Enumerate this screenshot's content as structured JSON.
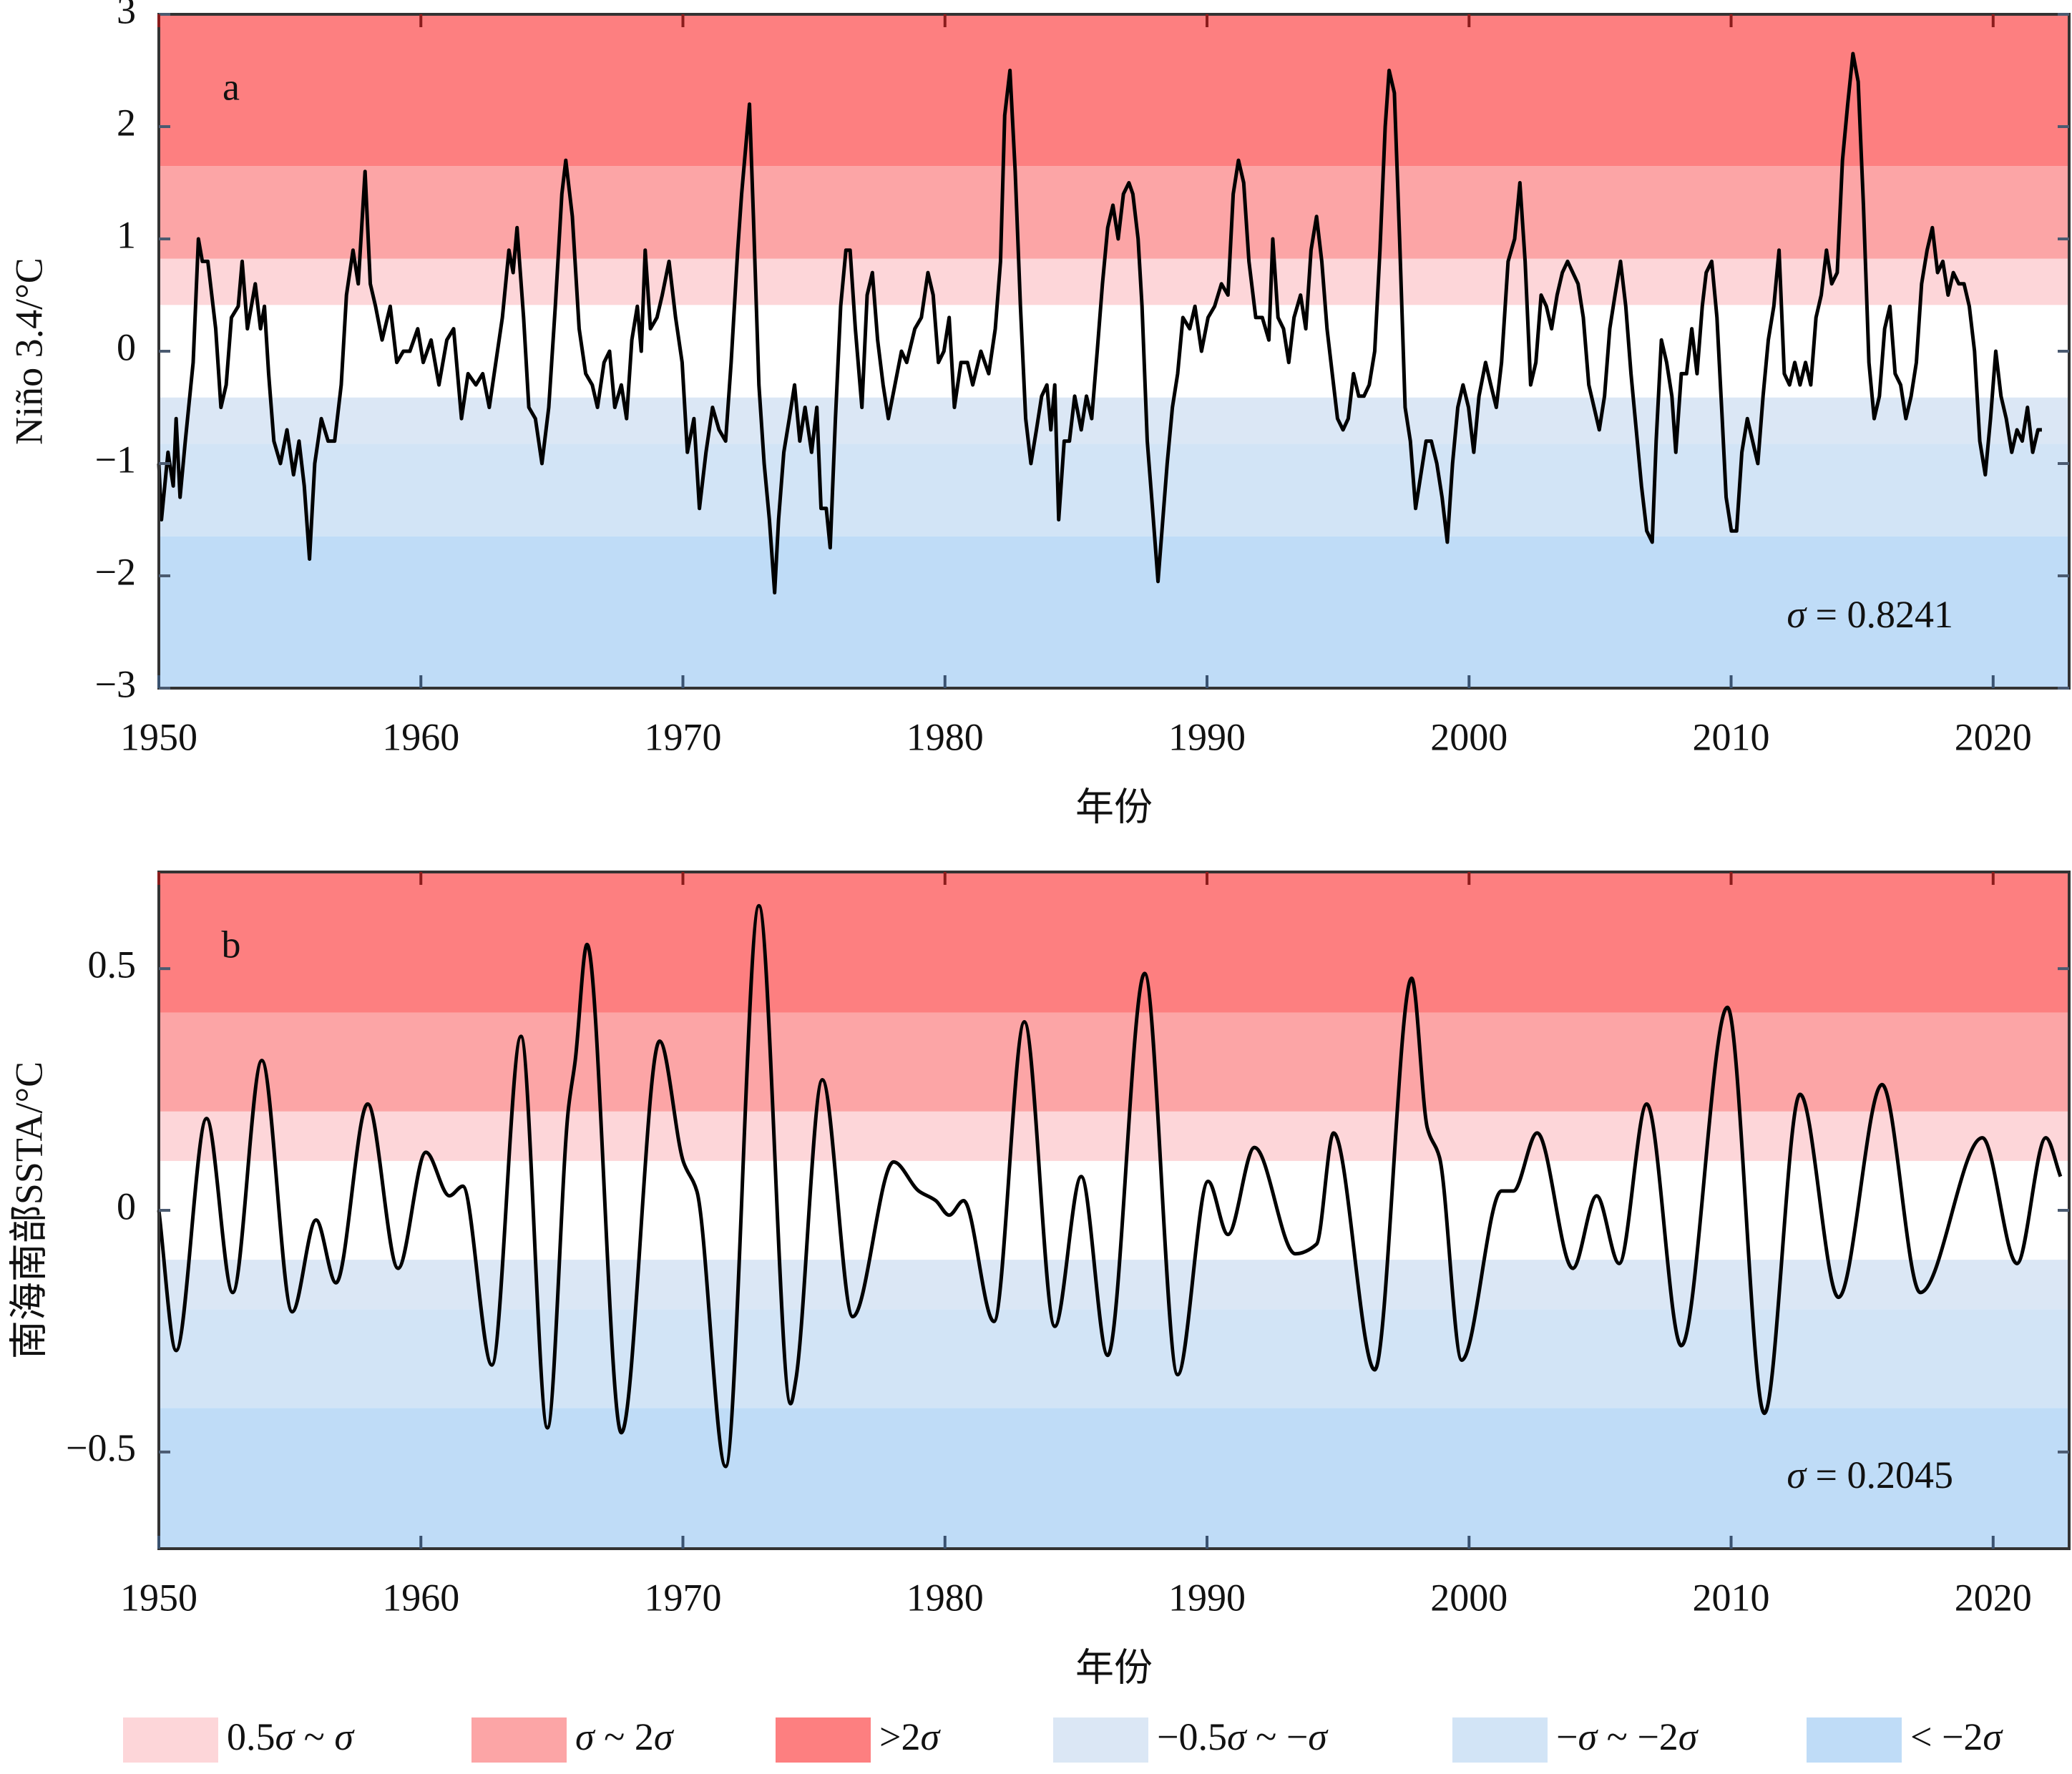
{
  "chart_data": [
    {
      "type": "line",
      "panel_label": "a",
      "sigma": 0.8241,
      "sigma_label": "σ = 0.8241",
      "x_label": "年份",
      "y_label": "Niño 3.4/°C",
      "xlim": [
        1950,
        2022.9
      ],
      "xticks": [
        1950,
        1960,
        1970,
        1980,
        1990,
        2000,
        2010,
        2020
      ],
      "ylim": [
        -3,
        3
      ],
      "yticks": [
        {
          "value": -3,
          "label": "−3"
        },
        {
          "value": -2,
          "label": "−2"
        },
        {
          "value": -1,
          "label": "−1"
        },
        0,
        1,
        2,
        3
      ],
      "series": [
        {
          "color": "#000000",
          "smooth": false,
          "x": [
            1950.0,
            1950.1,
            1950.35,
            1950.55,
            1950.66,
            1950.81,
            1951.01,
            1951.31,
            1951.51,
            1951.66,
            1951.87,
            1952.17,
            1952.37,
            1952.57,
            1952.77,
            1953.03,
            1953.18,
            1953.38,
            1953.68,
            1953.88,
            1954.03,
            1954.19,
            1954.39,
            1954.64,
            1954.89,
            1955.14,
            1955.35,
            1955.55,
            1955.75,
            1955.95,
            1956.2,
            1956.46,
            1956.71,
            1956.96,
            1957.16,
            1957.41,
            1957.61,
            1957.87,
            1958.07,
            1958.27,
            1958.52,
            1958.83,
            1959.08,
            1959.33,
            1959.58,
            1959.88,
            1960.09,
            1960.39,
            1960.69,
            1960.99,
            1961.25,
            1961.55,
            1961.8,
            1962.1,
            1962.36,
            1962.61,
            1962.86,
            1963.11,
            1963.36,
            1963.52,
            1963.67,
            1963.92,
            1964.12,
            1964.37,
            1964.62,
            1964.88,
            1965.13,
            1965.38,
            1965.53,
            1965.78,
            1966.04,
            1966.29,
            1966.54,
            1966.74,
            1966.99,
            1967.2,
            1967.4,
            1967.65,
            1967.85,
            1968.05,
            1968.26,
            1968.41,
            1968.56,
            1968.76,
            1969.01,
            1969.21,
            1969.47,
            1969.72,
            1969.97,
            1970.17,
            1970.42,
            1970.63,
            1970.88,
            1971.13,
            1971.38,
            1971.63,
            1971.84,
            1972.09,
            1972.24,
            1972.39,
            1972.54,
            1972.69,
            1972.9,
            1973.1,
            1973.3,
            1973.5,
            1973.65,
            1973.85,
            1974.06,
            1974.26,
            1974.46,
            1974.66,
            1974.91,
            1975.11,
            1975.27,
            1975.47,
            1975.62,
            1975.82,
            1976.02,
            1976.22,
            1976.38,
            1976.58,
            1976.83,
            1977.03,
            1977.23,
            1977.43,
            1977.64,
            1977.84,
            1978.09,
            1978.34,
            1978.54,
            1978.85,
            1979.1,
            1979.35,
            1979.55,
            1979.75,
            1979.96,
            1980.16,
            1980.36,
            1980.61,
            1980.86,
            1981.06,
            1981.37,
            1981.67,
            1981.92,
            1982.12,
            1982.28,
            1982.48,
            1982.68,
            1982.88,
            1983.08,
            1983.28,
            1983.49,
            1983.69,
            1983.89,
            1984.04,
            1984.19,
            1984.34,
            1984.55,
            1984.75,
            1984.95,
            1985.2,
            1985.4,
            1985.6,
            1985.81,
            1986.01,
            1986.21,
            1986.41,
            1986.61,
            1986.81,
            1987.02,
            1987.17,
            1987.37,
            1987.52,
            1987.72,
            1987.92,
            1988.13,
            1988.28,
            1988.48,
            1988.68,
            1988.88,
            1989.08,
            1989.34,
            1989.54,
            1989.79,
            1990.04,
            1990.29,
            1990.55,
            1990.8,
            1991.0,
            1991.2,
            1991.4,
            1991.6,
            1991.86,
            1992.11,
            1992.36,
            1992.51,
            1992.71,
            1992.92,
            1993.12,
            1993.32,
            1993.57,
            1993.77,
            1993.97,
            1994.18,
            1994.38,
            1994.58,
            1994.78,
            1994.98,
            1995.19,
            1995.39,
            1995.59,
            1995.79,
            1995.99,
            1996.19,
            1996.4,
            1996.6,
            1996.8,
            1996.95,
            1997.15,
            1997.35,
            1997.56,
            1997.76,
            1997.96,
            1998.16,
            1998.36,
            1998.56,
            1998.77,
            1998.97,
            1999.17,
            1999.37,
            1999.57,
            1999.77,
            1999.98,
            2000.18,
            2000.38,
            2000.63,
            2000.83,
            2001.04,
            2001.24,
            2001.49,
            2001.74,
            2001.94,
            2002.14,
            2002.35,
            2002.55,
            2002.75,
            2002.95,
            2003.15,
            2003.36,
            2003.56,
            2003.76,
            2003.96,
            2004.16,
            2004.36,
            2004.57,
            2004.77,
            2004.97,
            2005.17,
            2005.37,
            2005.57,
            2005.78,
            2005.98,
            2006.18,
            2006.38,
            2006.58,
            2006.78,
            2006.99,
            2007.14,
            2007.34,
            2007.54,
            2007.74,
            2007.89,
            2008.1,
            2008.3,
            2008.5,
            2008.7,
            2008.9,
            2009.05,
            2009.26,
            2009.46,
            2009.66,
            2009.81,
            2010.01,
            2010.21,
            2010.41,
            2010.62,
            2010.82,
            2011.02,
            2011.22,
            2011.42,
            2011.63,
            2011.83,
            2012.03,
            2012.23,
            2012.43,
            2012.63,
            2012.84,
            2013.04,
            2013.24,
            2013.44,
            2013.64,
            2013.84,
            2014.05,
            2014.25,
            2014.45,
            2014.65,
            2014.85,
            2015.05,
            2015.26,
            2015.46,
            2015.66,
            2015.86,
            2016.06,
            2016.26,
            2016.47,
            2016.67,
            2016.87,
            2017.07,
            2017.27,
            2017.48,
            2017.68,
            2017.88,
            2018.08,
            2018.28,
            2018.48,
            2018.69,
            2018.89,
            2019.09,
            2019.29,
            2019.49,
            2019.7,
            2019.9,
            2020.1,
            2020.3,
            2020.5,
            2020.71,
            2020.91,
            2021.11,
            2021.31,
            2021.51,
            2021.71,
            2021.86
          ],
          "values": [
            -1.0,
            -1.5,
            -0.9,
            -1.2,
            -0.6,
            -1.3,
            -0.8,
            -0.1,
            1.0,
            0.8,
            0.8,
            0.2,
            -0.5,
            -0.3,
            0.3,
            0.4,
            0.8,
            0.2,
            0.6,
            0.2,
            0.4,
            -0.2,
            -0.8,
            -1.0,
            -0.7,
            -1.1,
            -0.8,
            -1.2,
            -1.85,
            -1.0,
            -0.6,
            -0.8,
            -0.8,
            -0.3,
            0.5,
            0.9,
            0.6,
            1.6,
            0.6,
            0.4,
            0.1,
            0.4,
            -0.1,
            0.0,
            0.0,
            0.2,
            -0.1,
            0.1,
            -0.3,
            0.1,
            0.2,
            -0.6,
            -0.2,
            -0.3,
            -0.2,
            -0.5,
            -0.1,
            0.3,
            0.9,
            0.7,
            1.1,
            0.3,
            -0.5,
            -0.6,
            -1.0,
            -0.5,
            0.4,
            1.4,
            1.7,
            1.2,
            0.2,
            -0.2,
            -0.3,
            -0.5,
            -0.1,
            0.0,
            -0.5,
            -0.3,
            -0.6,
            0.1,
            0.4,
            0.0,
            0.9,
            0.2,
            0.3,
            0.5,
            0.8,
            0.3,
            -0.1,
            -0.9,
            -0.6,
            -1.4,
            -0.9,
            -0.5,
            -0.7,
            -0.8,
            -0.1,
            0.9,
            1.4,
            1.8,
            2.2,
            1.2,
            -0.3,
            -1.0,
            -1.5,
            -2.15,
            -1.5,
            -0.9,
            -0.6,
            -0.3,
            -0.8,
            -0.5,
            -0.9,
            -0.5,
            -1.4,
            -1.4,
            -1.75,
            -0.6,
            0.4,
            0.9,
            0.9,
            0.2,
            -0.5,
            0.5,
            0.7,
            0.1,
            -0.3,
            -0.6,
            -0.3,
            0.0,
            -0.1,
            0.2,
            0.3,
            0.7,
            0.5,
            -0.1,
            0.0,
            0.3,
            -0.5,
            -0.1,
            -0.1,
            -0.3,
            0.0,
            -0.2,
            0.2,
            0.8,
            2.1,
            2.5,
            1.6,
            0.4,
            -0.6,
            -1.0,
            -0.7,
            -0.4,
            -0.3,
            -0.7,
            -0.3,
            -1.5,
            -0.8,
            -0.8,
            -0.4,
            -0.7,
            -0.4,
            -0.6,
            0.0,
            0.6,
            1.1,
            1.3,
            1.0,
            1.4,
            1.5,
            1.4,
            1.0,
            0.4,
            -0.8,
            -1.4,
            -2.05,
            -1.6,
            -1.0,
            -0.5,
            -0.2,
            0.3,
            0.2,
            0.4,
            0.0,
            0.3,
            0.4,
            0.6,
            0.5,
            1.4,
            1.7,
            1.5,
            0.8,
            0.3,
            0.3,
            0.1,
            1.0,
            0.3,
            0.2,
            -0.1,
            0.3,
            0.5,
            0.2,
            0.9,
            1.2,
            0.8,
            0.2,
            -0.2,
            -0.6,
            -0.7,
            -0.6,
            -0.2,
            -0.4,
            -0.4,
            -0.3,
            0.0,
            0.9,
            2.0,
            2.5,
            2.3,
            1.0,
            -0.5,
            -0.8,
            -1.4,
            -1.1,
            -0.8,
            -0.8,
            -1.0,
            -1.3,
            -1.7,
            -1.0,
            -0.5,
            -0.3,
            -0.5,
            -0.9,
            -0.4,
            -0.1,
            -0.3,
            -0.5,
            -0.1,
            0.8,
            1.0,
            1.5,
            0.8,
            -0.3,
            -0.1,
            0.5,
            0.4,
            0.2,
            0.5,
            0.7,
            0.8,
            0.7,
            0.6,
            0.3,
            -0.3,
            -0.5,
            -0.7,
            -0.4,
            0.2,
            0.5,
            0.8,
            0.4,
            -0.2,
            -0.7,
            -1.2,
            -1.6,
            -1.7,
            -0.8,
            0.1,
            -0.1,
            -0.4,
            -0.9,
            -0.2,
            -0.2,
            0.2,
            -0.2,
            0.4,
            0.7,
            0.8,
            0.3,
            -0.6,
            -1.3,
            -1.6,
            -1.6,
            -0.9,
            -0.6,
            -0.8,
            -1.0,
            -0.4,
            0.1,
            0.4,
            0.9,
            -0.2,
            -0.3,
            -0.1,
            -0.3,
            -0.1,
            -0.3,
            0.3,
            0.5,
            0.9,
            0.6,
            0.7,
            1.7,
            2.2,
            2.65,
            2.4,
            1.3,
            -0.1,
            -0.6,
            -0.4,
            0.2,
            0.4,
            -0.2,
            -0.3,
            -0.6,
            -0.4,
            -0.1,
            0.6,
            0.9,
            1.1,
            0.7,
            0.8,
            0.5,
            0.7,
            0.6,
            0.6,
            0.4,
            0.0,
            -0.8,
            -1.1,
            -0.6,
            0.0,
            -0.4,
            -0.6,
            -0.9,
            -0.7,
            -0.8,
            -0.5,
            -0.9,
            -0.7,
            -0.7
          ]
        }
      ]
    },
    {
      "type": "line",
      "panel_label": "b",
      "sigma": 0.2045,
      "sigma_label": "σ = 0.2045",
      "x_label": "年份",
      "y_label": "南海南部SSTA/°C",
      "xlim": [
        1950,
        2022.9
      ],
      "xticks": [
        1950,
        1960,
        1970,
        1980,
        1990,
        2000,
        2010,
        2020
      ],
      "ylim": [
        -0.7,
        0.7
      ],
      "yticks": [
        {
          "value": -0.5,
          "label": "−0.5"
        },
        0,
        0.5
      ],
      "series": [
        {
          "color": "#000000",
          "smooth": true,
          "x": [
            1950.0,
            1950.66,
            1951.82,
            1952.82,
            1953.93,
            1955.09,
            1956.0,
            1956.76,
            1957.97,
            1959.13,
            1960.19,
            1961.09,
            1961.6,
            1962.71,
            1963.82,
            1964.83,
            1965.63,
            1965.89,
            1966.34,
            1967.65,
            1969.11,
            1970.02,
            1970.53,
            1971.63,
            1972.9,
            1974.11,
            1974.31,
            1975.32,
            1976.48,
            1978.04,
            1979.0,
            1979.65,
            1980.16,
            1980.71,
            1981.87,
            1983.03,
            1984.19,
            1985.2,
            1986.21,
            1987.62,
            1988.88,
            1990.04,
            1990.8,
            1991.81,
            1993.37,
            1994.18,
            1994.83,
            1996.4,
            1997.81,
            1998.41,
            1998.87,
            1999.72,
            2001.24,
            2001.69,
            2002.6,
            2003.96,
            2004.87,
            2005.73,
            2006.78,
            2008.1,
            2009.86,
            2011.27,
            2012.63,
            2014.1,
            2015.76,
            2017.22,
            2019.59,
            2020.91,
            2022.01,
            2022.57
          ],
          "values": [
            0.0,
            -0.29,
            0.19,
            -0.17,
            0.31,
            -0.21,
            -0.02,
            -0.15,
            0.22,
            -0.12,
            0.12,
            0.03,
            0.05,
            -0.32,
            0.36,
            -0.45,
            0.21,
            0.31,
            0.55,
            -0.46,
            0.35,
            0.1,
            0.04,
            -0.53,
            0.63,
            -0.4,
            -0.35,
            0.27,
            -0.22,
            0.1,
            0.04,
            0.02,
            -0.01,
            0.02,
            -0.23,
            0.39,
            -0.24,
            0.07,
            -0.3,
            0.49,
            -0.34,
            0.06,
            -0.05,
            0.13,
            -0.09,
            -0.07,
            0.16,
            -0.33,
            0.48,
            0.17,
            0.11,
            -0.31,
            0.04,
            0.04,
            0.16,
            -0.12,
            0.03,
            -0.11,
            0.22,
            -0.28,
            0.42,
            -0.42,
            0.24,
            -0.18,
            0.26,
            -0.17,
            0.15,
            -0.11,
            0.15,
            0.07
          ]
        }
      ]
    }
  ],
  "legend": {
    "items": [
      {
        "label": "0.5σ ~ σ",
        "color": "#fdd6d9",
        "sigma_range": [
          0.5,
          1
        ]
      },
      {
        "label": "σ ~ 2σ",
        "color": "#fca5a6",
        "sigma_range": [
          1,
          2
        ]
      },
      {
        "label": ">2σ",
        "color": "#fd7f80",
        "sigma_range": [
          2,
          null
        ]
      },
      {
        "label": "−0.5σ ~ −σ",
        "color": "#dbe7f5",
        "sigma_range": [
          -0.5,
          -1
        ]
      },
      {
        "label": "−σ ~ −2σ",
        "color": "#d2e4f6",
        "sigma_range": [
          -1,
          -2
        ]
      },
      {
        "label": "< −2σ",
        "color": "#bfdcf7",
        "sigma_range": [
          -2,
          null
        ]
      }
    ]
  }
}
